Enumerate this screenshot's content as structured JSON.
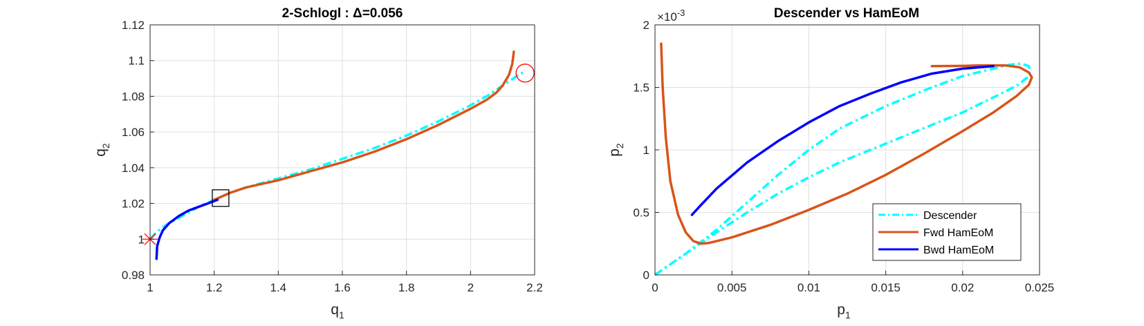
{
  "chart_data": [
    {
      "type": "line",
      "title": "2-Schlogl : Δ=0.056",
      "xlabel": "q",
      "xlabel_sub": "1",
      "ylabel": "q",
      "ylabel_sub": "2",
      "xlim": [
        1,
        2.2
      ],
      "ylim": [
        0.98,
        1.12
      ],
      "xticks": [
        "1",
        "1.2",
        "1.4",
        "1.6",
        "1.8",
        "2",
        "2.2"
      ],
      "yticks": [
        "0.98",
        "1",
        "1.02",
        "1.04",
        "1.06",
        "1.08",
        "1.1",
        "1.12"
      ],
      "grid": true,
      "series": [
        {
          "color": "#00FFFF",
          "style": "dashdot",
          "x": [
            1.0,
            1.02,
            1.05,
            1.1,
            1.15,
            1.2,
            1.25,
            1.3,
            1.4,
            1.5,
            1.6,
            1.7,
            1.8,
            1.9,
            2.0,
            2.05,
            2.1,
            2.15,
            2.17
          ],
          "y": [
            1.0,
            1.004,
            1.008,
            1.013,
            1.018,
            1.022,
            1.026,
            1.029,
            1.034,
            1.039,
            1.045,
            1.051,
            1.058,
            1.066,
            1.075,
            1.08,
            1.086,
            1.092,
            1.094
          ]
        },
        {
          "color": "#D95319",
          "style": "solid",
          "x": [
            1.2,
            1.25,
            1.3,
            1.4,
            1.5,
            1.6,
            1.7,
            1.8,
            1.9,
            2.0,
            2.05,
            2.08,
            2.1,
            2.12,
            2.13,
            2.135
          ],
          "y": [
            1.022,
            1.026,
            1.029,
            1.033,
            1.038,
            1.043,
            1.049,
            1.056,
            1.064,
            1.073,
            1.078,
            1.082,
            1.086,
            1.092,
            1.098,
            1.105
          ]
        },
        {
          "color": "#0000FF",
          "style": "solid",
          "x": [
            1.02,
            1.022,
            1.03,
            1.04,
            1.06,
            1.09,
            1.12,
            1.15,
            1.18,
            1.21
          ],
          "y": [
            0.989,
            0.996,
            1.001,
            1.005,
            1.009,
            1.013,
            1.016,
            1.018,
            1.02,
            1.022
          ]
        }
      ],
      "markers": [
        {
          "shape": "asterisk",
          "color": "#FF0000",
          "x": 1.0,
          "y": 1.0
        },
        {
          "shape": "square",
          "color": "#000000",
          "x": 1.22,
          "y": 1.023
        },
        {
          "shape": "circle",
          "color": "#FF0000",
          "x": 2.17,
          "y": 1.093
        }
      ]
    },
    {
      "type": "line",
      "title": "Descender vs HamEoM",
      "xlabel": "p",
      "xlabel_sub": "1",
      "ylabel": "p",
      "ylabel_sub": "2",
      "exponent": "×10",
      "exponent_power": "-3",
      "xlim": [
        0,
        0.025
      ],
      "ylim": [
        0,
        2
      ],
      "xticks": [
        "0",
        "0.005",
        "0.01",
        "0.015",
        "0.02",
        "0.025"
      ],
      "yticks": [
        "0",
        "0.5",
        "1",
        "1.5",
        "2"
      ],
      "grid": true,
      "legend": {
        "placement": "bottom-right",
        "entries": [
          "Descender",
          "Fwd HamEoM",
          "Bwd HamEoM"
        ]
      },
      "series": [
        {
          "name": "Descender",
          "color": "#00FFFF",
          "style": "dashdot",
          "x": [
            0,
            0.002,
            0.004,
            0.006,
            0.008,
            0.01,
            0.012,
            0.015,
            0.018,
            0.02,
            0.022,
            0.023,
            0.0238,
            0.0243,
            0.0244,
            0.0242,
            0.0236,
            0.0225,
            0.02,
            0.017,
            0.014,
            0.012,
            0.01,
            0.008,
            0.006,
            0.004,
            0.002,
            0
          ],
          "y": [
            0,
            0.17,
            0.36,
            0.58,
            0.8,
            1.0,
            1.17,
            1.35,
            1.5,
            1.59,
            1.65,
            1.68,
            1.69,
            1.67,
            1.63,
            1.58,
            1.52,
            1.45,
            1.3,
            1.15,
            1.0,
            0.9,
            0.78,
            0.65,
            0.5,
            0.34,
            0.17,
            0
          ]
        },
        {
          "name": "Fwd HamEoM",
          "color": "#D95319",
          "style": "solid",
          "x": [
            0.0004,
            0.0005,
            0.0007,
            0.001,
            0.0015,
            0.002,
            0.0025,
            0.003,
            0.0035,
            0.005,
            0.0075,
            0.01,
            0.0125,
            0.015,
            0.0175,
            0.02,
            0.022,
            0.0235,
            0.0243,
            0.0245,
            0.0243,
            0.0237,
            0.0228,
            0.021,
            0.02,
            0.018
          ],
          "y": [
            1.85,
            1.5,
            1.1,
            0.75,
            0.48,
            0.34,
            0.27,
            0.25,
            0.255,
            0.3,
            0.4,
            0.52,
            0.65,
            0.8,
            0.97,
            1.15,
            1.3,
            1.43,
            1.52,
            1.58,
            1.62,
            1.66,
            1.675,
            1.675,
            1.672,
            1.67
          ]
        },
        {
          "name": "Bwd HamEoM",
          "color": "#0000FF",
          "style": "solid",
          "x": [
            0.0024,
            0.003,
            0.004,
            0.006,
            0.008,
            0.01,
            0.012,
            0.014,
            0.016,
            0.018,
            0.02,
            0.022
          ],
          "y": [
            0.48,
            0.56,
            0.69,
            0.9,
            1.07,
            1.22,
            1.35,
            1.45,
            1.54,
            1.61,
            1.65,
            1.67
          ]
        }
      ]
    }
  ]
}
